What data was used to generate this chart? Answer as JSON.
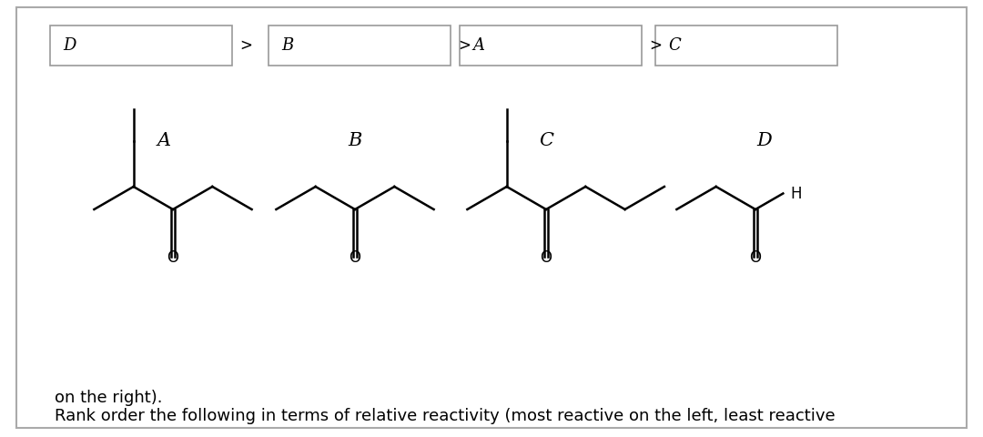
{
  "title_line1": "Rank order the following in terms of relative reactivity (most reactive on the left, least reactive",
  "title_line2": "on the right).",
  "bg_color": "#ffffff",
  "text_color": "#000000",
  "molecule_labels": [
    "A",
    "B",
    "C",
    "D"
  ],
  "answer_labels": [
    "D",
    "B",
    "A",
    "C"
  ],
  "molecule_label_fontsize": 15,
  "title_fontsize": 13,
  "answer_fontsize": 13
}
